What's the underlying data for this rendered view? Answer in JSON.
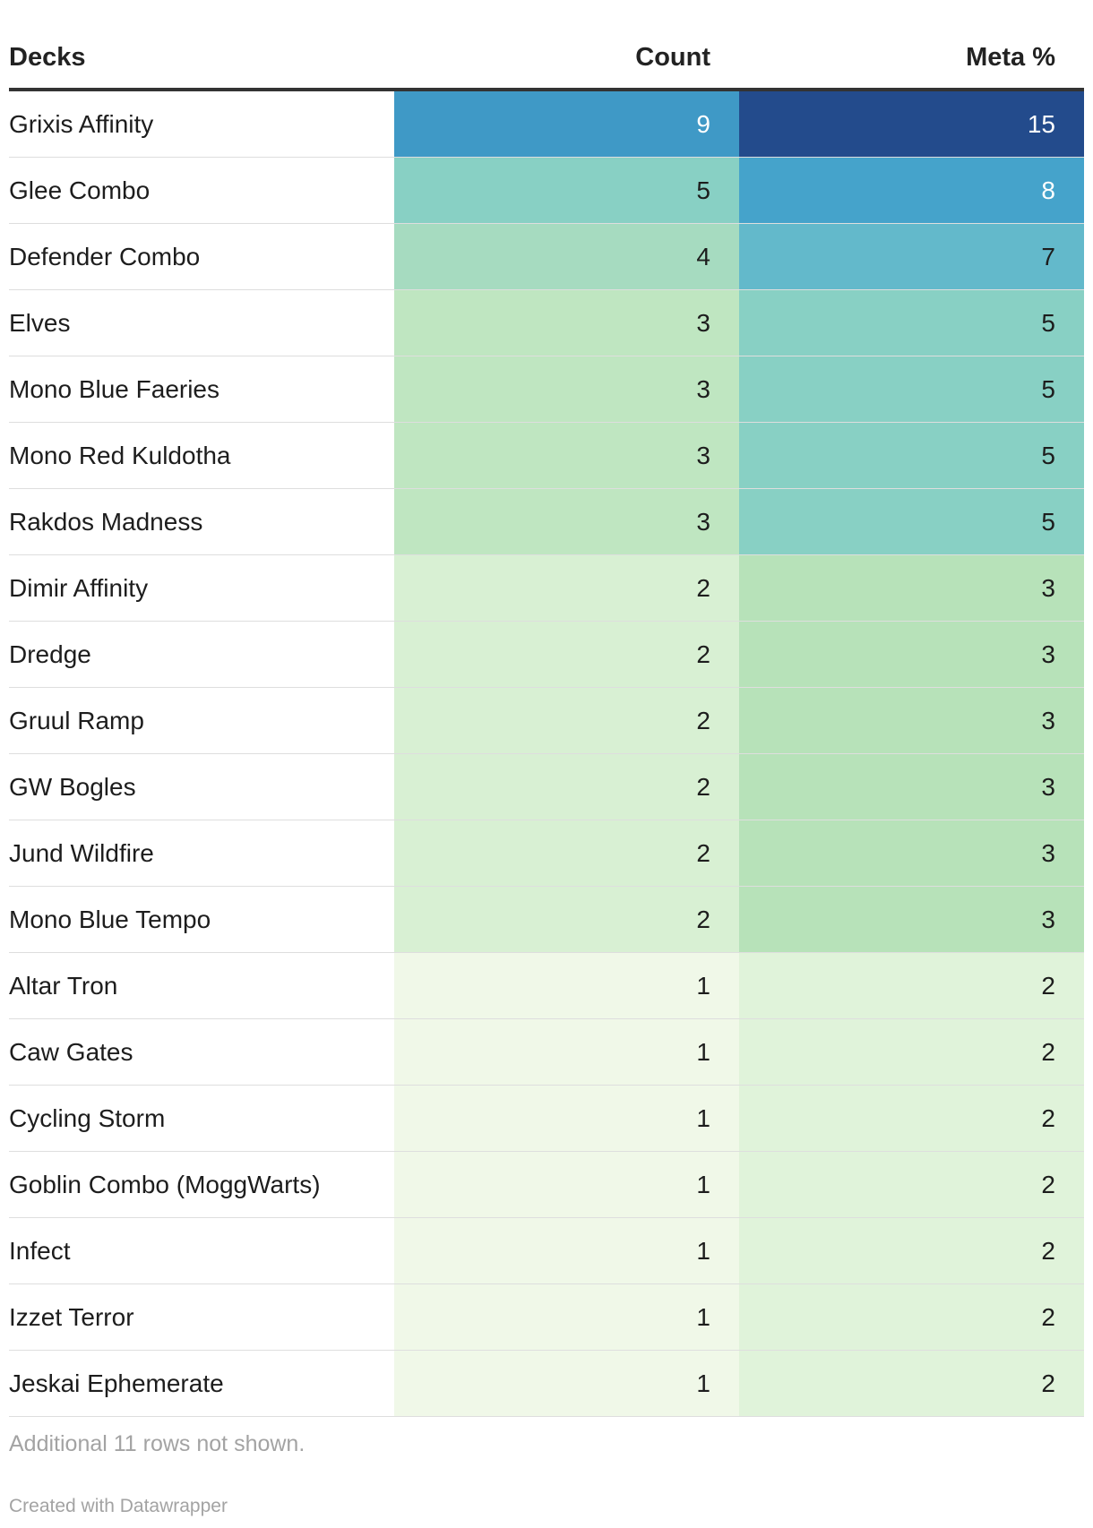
{
  "chart_data": {
    "type": "table",
    "columns": [
      "Decks",
      "Count",
      "Meta %"
    ],
    "rows": [
      {
        "deck": "Grixis Affinity",
        "count": 9,
        "meta": 15
      },
      {
        "deck": "Glee Combo",
        "count": 5,
        "meta": 8
      },
      {
        "deck": "Defender Combo",
        "count": 4,
        "meta": 7
      },
      {
        "deck": "Elves",
        "count": 3,
        "meta": 5
      },
      {
        "deck": "Mono Blue Faeries",
        "count": 3,
        "meta": 5
      },
      {
        "deck": "Mono Red Kuldotha",
        "count": 3,
        "meta": 5
      },
      {
        "deck": "Rakdos Madness",
        "count": 3,
        "meta": 5
      },
      {
        "deck": "Dimir Affinity",
        "count": 2,
        "meta": 3
      },
      {
        "deck": "Dredge",
        "count": 2,
        "meta": 3
      },
      {
        "deck": "Gruul Ramp",
        "count": 2,
        "meta": 3
      },
      {
        "deck": "GW Bogles",
        "count": 2,
        "meta": 3
      },
      {
        "deck": "Jund Wildfire",
        "count": 2,
        "meta": 3
      },
      {
        "deck": "Mono Blue Tempo",
        "count": 2,
        "meta": 3
      },
      {
        "deck": "Altar Tron",
        "count": 1,
        "meta": 2
      },
      {
        "deck": "Caw Gates",
        "count": 1,
        "meta": 2
      },
      {
        "deck": "Cycling Storm",
        "count": 1,
        "meta": 2
      },
      {
        "deck": "Goblin Combo (MoggWarts)",
        "count": 1,
        "meta": 2
      },
      {
        "deck": "Infect",
        "count": 1,
        "meta": 2
      },
      {
        "deck": "Izzet Terror",
        "count": 1,
        "meta": 2
      },
      {
        "deck": "Jeskai Ephemerate",
        "count": 1,
        "meta": 2
      }
    ],
    "heatmap_colors": {
      "count": {
        "1": "#f0f8e8",
        "2": "#d8f0d3",
        "3": "#bfe6c1",
        "4": "#a6dbc0",
        "5": "#88d0c4",
        "9": "#3f99c6"
      },
      "meta": {
        "2": "#e0f3da",
        "3": "#b7e2b9",
        "5": "#88d0c4",
        "7": "#63b9cb",
        "8": "#45a3cb",
        "15": "#234b8c"
      }
    },
    "light_text_color": "#ffffff",
    "dark_text_color": "#1d1d1d",
    "footer_note": "Additional 11 rows not shown."
  },
  "credit": "Created with Datawrapper"
}
